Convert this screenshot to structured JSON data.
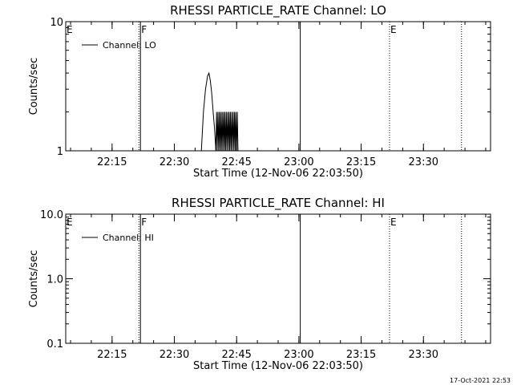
{
  "footer": {
    "timestamp": "17-Oct-2021 22:53"
  },
  "chart_data": [
    {
      "type": "line",
      "title": "RHESSI PARTICLE_RATE Channel: LO",
      "xlabel": "Start Time (12-Nov-06 22:03:50)",
      "ylabel": "Counts/sec",
      "yscale": "log",
      "ylim": [
        1,
        10
      ],
      "yticks": [
        1,
        10
      ],
      "ytick_labels": [
        "1",
        "10"
      ],
      "xlim": [
        "22:03:50",
        "23:46:10"
      ],
      "xticks": [
        "22:15",
        "22:30",
        "22:45",
        "23:00",
        "23:15",
        "23:30"
      ],
      "legend": "top-left",
      "series": [
        {
          "name": "Channel: LO",
          "color": "#000000",
          "x": [
            "22:36:30",
            "22:37:00",
            "22:37:30",
            "22:38:00",
            "22:38:20",
            "22:38:40",
            "22:39:00",
            "22:39:20",
            "22:39:40",
            "22:40:00",
            "22:40:10",
            "22:40:20",
            "22:40:30",
            "22:40:40",
            "22:40:50",
            "22:41:00",
            "22:41:10",
            "22:41:20",
            "22:41:30",
            "22:41:40",
            "22:41:50",
            "22:42:00",
            "22:42:10",
            "22:42:20",
            "22:42:30",
            "22:42:40",
            "22:42:50",
            "22:43:00",
            "22:43:10",
            "22:43:20",
            "22:43:30",
            "22:43:40",
            "22:43:50",
            "22:44:00",
            "22:44:10",
            "22:44:20",
            "22:44:30",
            "22:44:40",
            "22:44:50",
            "22:45:00",
            "22:45:10",
            "22:45:20"
          ],
          "y": [
            1,
            2,
            3,
            3.8,
            4,
            3.5,
            2.8,
            2,
            1.5,
            1,
            2,
            1,
            2,
            1,
            2,
            1,
            2,
            1,
            2,
            1,
            2,
            1,
            2,
            1,
            2,
            1,
            2,
            1,
            2,
            1,
            2,
            1,
            2,
            1,
            2,
            1,
            2,
            1,
            2,
            1,
            2,
            1
          ]
        }
      ],
      "annotations": [
        {
          "label": "E",
          "time": "22:03:50",
          "line": "solid"
        },
        {
          "label": "F",
          "time": "22:21:50",
          "line": "solid"
        },
        {
          "label": "",
          "time": "23:00:20",
          "line": "solid"
        },
        {
          "label": "E",
          "time": "23:21:50",
          "line": "dotted"
        },
        {
          "label": "",
          "time": "23:39:10",
          "line": "dotted"
        }
      ]
    },
    {
      "type": "line",
      "title": "RHESSI PARTICLE_RATE Channel: HI",
      "xlabel": "Start Time (12-Nov-06 22:03:50)",
      "ylabel": "Counts/sec",
      "yscale": "log",
      "ylim": [
        0.1,
        10
      ],
      "yticks": [
        0.1,
        1,
        10
      ],
      "ytick_labels": [
        "0.1",
        "1.0",
        "10.0"
      ],
      "xlim": [
        "22:03:50",
        "23:46:10"
      ],
      "xticks": [
        "22:15",
        "22:30",
        "22:45",
        "23:00",
        "23:15",
        "23:30"
      ],
      "legend": "top-left",
      "series": [
        {
          "name": "Channel: HI",
          "color": "#000000",
          "x": [],
          "y": []
        }
      ],
      "annotations": [
        {
          "label": "E",
          "time": "22:03:50",
          "line": "solid"
        },
        {
          "label": "F",
          "time": "22:21:50",
          "line": "solid"
        },
        {
          "label": "",
          "time": "23:00:20",
          "line": "solid"
        },
        {
          "label": "E",
          "time": "23:21:50",
          "line": "dotted"
        },
        {
          "label": "",
          "time": "23:39:10",
          "line": "dotted"
        }
      ]
    }
  ]
}
